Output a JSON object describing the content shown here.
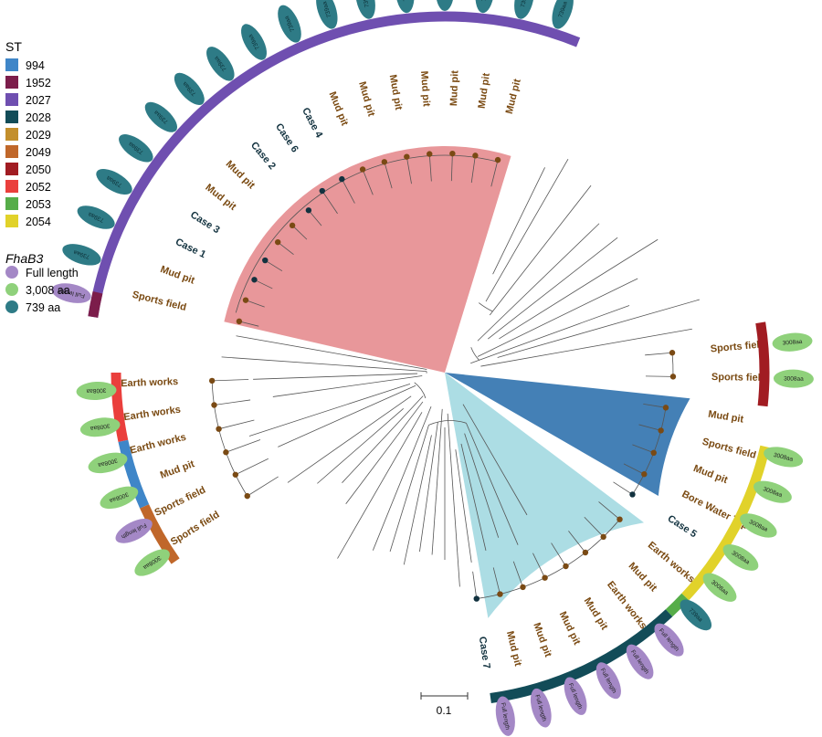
{
  "colors": {
    "site": "#7a4a12",
    "case": "#12323f",
    "dot_site": "#7a4a14",
    "dot_case": "#12323f",
    "fan_red": "#e8979a",
    "fan_blue": "#4480b6",
    "fan_cyan": "#acdde4"
  },
  "legend": {
    "st_title": "ST",
    "st_items": [
      {
        "label": "994",
        "color": "#3f86c8"
      },
      {
        "label": "1952",
        "color": "#7c1d4b"
      },
      {
        "label": "2027",
        "color": "#6f4fb0"
      },
      {
        "label": "2028",
        "color": "#124c58"
      },
      {
        "label": "2029",
        "color": "#c38f2c"
      },
      {
        "label": "2049",
        "color": "#c0672a"
      },
      {
        "label": "2050",
        "color": "#a11c22"
      },
      {
        "label": "2052",
        "color": "#ea3f3c"
      },
      {
        "label": "2053",
        "color": "#56ad49"
      },
      {
        "label": "2054",
        "color": "#e1d22a"
      }
    ],
    "fha_title": "FhaB3",
    "fha_items": [
      {
        "label": "Full length",
        "color": "#a488c6"
      },
      {
        "label": "3,008 aa",
        "color": "#8fd17b"
      },
      {
        "label": "739 aa",
        "color": "#2e7b86"
      }
    ]
  },
  "oval_texts": {
    "full": "Full length",
    "a3008": "3008aa",
    "a739": "739aa"
  },
  "scale_label": "0.1",
  "tips": [
    {
      "label": "Mud pit",
      "type": "site",
      "angle": 76
    },
    {
      "label": "Mud pit",
      "type": "site",
      "angle": 82
    },
    {
      "label": "Mud pit",
      "type": "site",
      "angle": 88
    },
    {
      "label": "Mud pit",
      "type": "site",
      "angle": 94
    },
    {
      "label": "Mud pit",
      "type": "site",
      "angle": 100
    },
    {
      "label": "Mud pit",
      "type": "site",
      "angle": 106
    },
    {
      "label": "Mud pit",
      "type": "site",
      "angle": 112
    },
    {
      "label": "Case 4",
      "type": "case",
      "angle": 118
    },
    {
      "label": "Case 6",
      "type": "case",
      "angle": 124
    },
    {
      "label": "Case 2",
      "type": "case",
      "angle": 130
    },
    {
      "label": "Mud pit",
      "type": "site",
      "angle": 136
    },
    {
      "label": "Mud pit",
      "type": "site",
      "angle": 142
    },
    {
      "label": "Case 3",
      "type": "case",
      "angle": 148
    },
    {
      "label": "Case 1",
      "type": "case",
      "angle": 154
    },
    {
      "label": "Mud pit",
      "type": "site",
      "angle": 160
    },
    {
      "label": "Sports field",
      "type": "site",
      "angle": 166
    },
    {
      "label": "Sports field",
      "type": "site",
      "angle": 5
    },
    {
      "label": "Sports field",
      "type": "site",
      "angle": -1
    },
    {
      "label": "Earth works",
      "type": "site",
      "angle": 182
    },
    {
      "label": "Earth works",
      "type": "site",
      "angle": 188
    },
    {
      "label": "Earth works",
      "type": "site",
      "angle": 194
    },
    {
      "label": "Mud pit",
      "type": "site",
      "angle": 200
    },
    {
      "label": "Sports field",
      "type": "site",
      "angle": 206
    },
    {
      "label": "Sports field",
      "type": "site",
      "angle": 212
    },
    {
      "label": "Mud pit",
      "type": "site",
      "angle": -9
    },
    {
      "label": "Sports field",
      "type": "site",
      "angle": -15
    },
    {
      "label": "Mud pit",
      "type": "site",
      "angle": -21
    },
    {
      "label": "Bore Water Tap",
      "type": "site",
      "angle": -27
    },
    {
      "label": "Case 5",
      "type": "case",
      "angle": -33
    },
    {
      "label": "Earth works",
      "type": "site",
      "angle": -40
    },
    {
      "label": "Mud pit",
      "type": "site",
      "angle": -46
    },
    {
      "label": "Earth works",
      "type": "site",
      "angle": -52
    },
    {
      "label": "Mud pit",
      "type": "site",
      "angle": -58
    },
    {
      "label": "Mud pit",
      "type": "site",
      "angle": -64
    },
    {
      "label": "Mud pit",
      "type": "site",
      "angle": -70
    },
    {
      "label": "Mud pit",
      "type": "site",
      "angle": -76
    },
    {
      "label": "Case 7",
      "type": "case",
      "angle": -82
    }
  ],
  "st_arcs": [
    {
      "st": "2027",
      "from": 171,
      "to": 68,
      "radius": 390
    },
    {
      "st": "1952",
      "from": 171,
      "to": 167,
      "radius": 390
    },
    {
      "st": "2050",
      "from": 9,
      "to": -6,
      "radius": 350
    },
    {
      "st": "2052",
      "from": 180,
      "to": 192,
      "radius": 360
    },
    {
      "st": "994",
      "from": 192,
      "to": 204,
      "radius": 360
    },
    {
      "st": "2049",
      "from": 204,
      "to": 215,
      "radius": 360
    },
    {
      "st": "2054",
      "from": -13,
      "to": -43,
      "radius": 360
    },
    {
      "st": "2053",
      "from": -43,
      "to": -47,
      "radius": 360
    },
    {
      "st": "2028",
      "from": -47,
      "to": -82,
      "radius": 360
    }
  ],
  "ovals": [
    {
      "t": "a739",
      "angle": 72
    },
    {
      "t": "a739",
      "angle": 78
    },
    {
      "t": "a739",
      "angle": 84
    },
    {
      "t": "a739",
      "angle": 90
    },
    {
      "t": "a739",
      "angle": 96
    },
    {
      "t": "a739",
      "angle": 102
    },
    {
      "t": "a739",
      "angle": 108
    },
    {
      "t": "a739",
      "angle": 114
    },
    {
      "t": "a739",
      "angle": 120
    },
    {
      "t": "a739",
      "angle": 126
    },
    {
      "t": "a739",
      "angle": 132
    },
    {
      "t": "a739",
      "angle": 138
    },
    {
      "t": "a739",
      "angle": 144
    },
    {
      "t": "a739",
      "angle": 150
    },
    {
      "t": "a739",
      "angle": 156
    },
    {
      "t": "a739",
      "angle": 162
    },
    {
      "t": "full",
      "angle": 168
    },
    {
      "t": "a3008",
      "angle": 5
    },
    {
      "t": "a3008",
      "angle": -1
    },
    {
      "t": "a3008",
      "angle": 183
    },
    {
      "t": "a3008",
      "angle": 189
    },
    {
      "t": "a3008",
      "angle": 195
    },
    {
      "t": "a3008",
      "angle": 201
    },
    {
      "t": "full",
      "angle": 207
    },
    {
      "t": "a3008",
      "angle": 213
    },
    {
      "t": "a3008",
      "angle": -14
    },
    {
      "t": "a3008",
      "angle": -20
    },
    {
      "t": "a3008",
      "angle": -26
    },
    {
      "t": "a3008",
      "angle": -32
    },
    {
      "t": "a3008",
      "angle": -38
    },
    {
      "t": "a739",
      "angle": -44
    },
    {
      "t": "full",
      "angle": -50
    },
    {
      "t": "full",
      "angle": -56
    },
    {
      "t": "full",
      "angle": -62
    },
    {
      "t": "full",
      "angle": -68
    },
    {
      "t": "full",
      "angle": -74
    },
    {
      "t": "full",
      "angle": -80
    }
  ]
}
